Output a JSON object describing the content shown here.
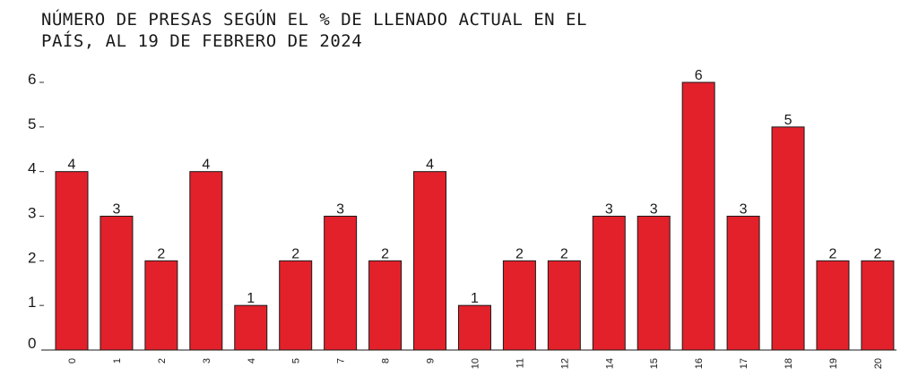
{
  "chart_data": {
    "type": "bar",
    "title_lines": [
      "NÚMERO DE PRESAS SEGÚN EL % DE LLENADO ACTUAL EN EL",
      "PAÍS, AL 19 DE FEBRERO DE 2024"
    ],
    "categories": [
      "0",
      "1",
      "2",
      "3",
      "4",
      "5",
      "7",
      "8",
      "9",
      "10",
      "11",
      "12",
      "14",
      "15",
      "16",
      "17",
      "18",
      "19",
      "20"
    ],
    "values": [
      4,
      3,
      2,
      4,
      1,
      2,
      3,
      2,
      4,
      1,
      2,
      2,
      3,
      3,
      6,
      3,
      5,
      2,
      2
    ],
    "ylim": [
      0,
      6
    ],
    "yticks": [
      "0",
      "1",
      "2",
      "3",
      "4",
      "5",
      "6"
    ],
    "bar_color": "#e3212b",
    "grid": false,
    "xlabel": "",
    "ylabel": ""
  }
}
